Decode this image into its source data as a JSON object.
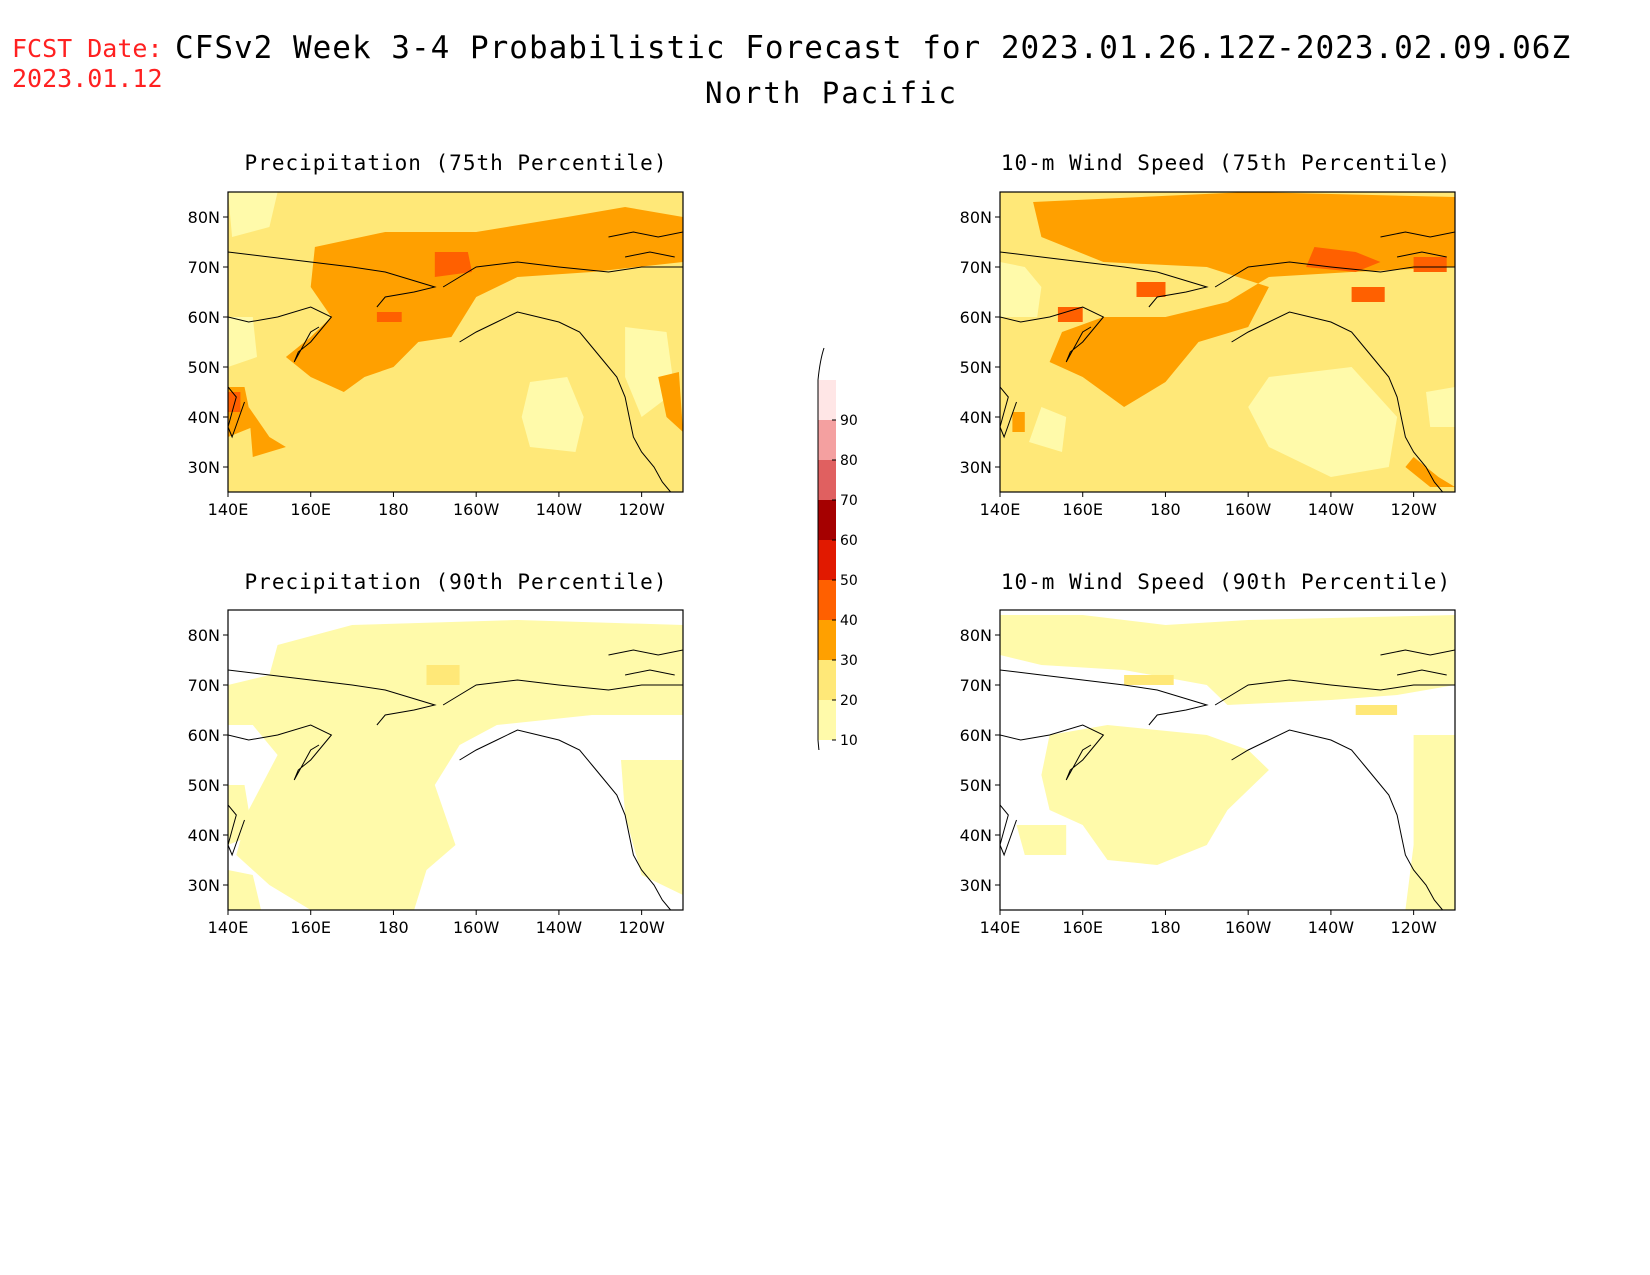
{
  "header": {
    "fcst_label": "FCST Date:",
    "fcst_date": "2023.01.12",
    "title": "CFSv2 Week 3-4 Probabilistic Forecast for 2023.01.26.12Z-2023.02.09.06Z",
    "region": "North Pacific"
  },
  "map": {
    "lon_labels": [
      "140E",
      "160E",
      "180",
      "160W",
      "140W",
      "120W"
    ],
    "lat_labels": [
      "80N",
      "70N",
      "60N",
      "50N",
      "40N",
      "30N"
    ],
    "extent": {
      "lon_min": 140,
      "lon_max": 250,
      "lat_min": 25,
      "lat_max": 85
    }
  },
  "panels": [
    {
      "id": "precip75",
      "title": "Precipitation (75th Percentile)",
      "level": "high-20-40"
    },
    {
      "id": "wind75",
      "title": "10-m Wind Speed (75th Percentile)",
      "level": "high-20-50"
    },
    {
      "id": "precip90",
      "title": "Precipitation (90th Percentile)",
      "level": "low-0-20"
    },
    {
      "id": "wind90",
      "title": "10-m Wind Speed (90th Percentile)",
      "level": "low-0-20"
    }
  ],
  "colorbar": {
    "levels": [
      {
        "label": "10",
        "color": "#fffaaa"
      },
      {
        "label": "20",
        "color": "#ffe878"
      },
      {
        "label": "30",
        "color": "#ffa000"
      },
      {
        "label": "40",
        "color": "#ff6000"
      },
      {
        "label": "50",
        "color": "#e11900"
      },
      {
        "label": "60",
        "color": "#a50000"
      },
      {
        "label": "70",
        "color": "#e06060"
      },
      {
        "label": "80",
        "color": "#f4a0a0"
      },
      {
        "label": "90",
        "color": "#ffe6e6"
      }
    ]
  },
  "colors": {
    "c10": "#fffaaa",
    "c20": "#ffe878",
    "c30": "#ffa000",
    "c40": "#ff6000",
    "c50": "#e11900"
  }
}
